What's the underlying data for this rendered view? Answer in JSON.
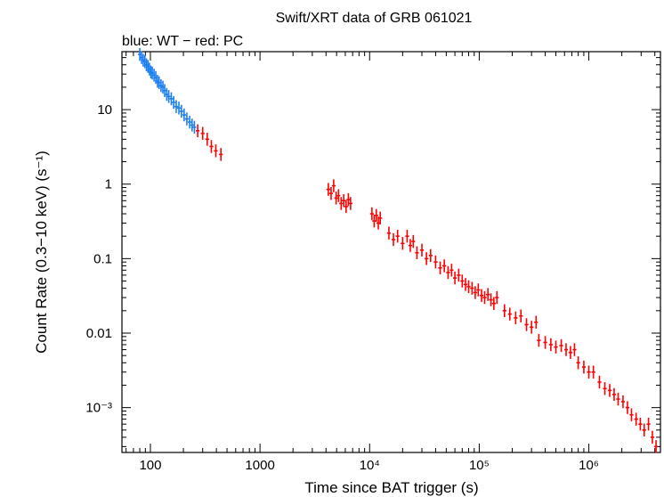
{
  "chart_data": {
    "type": "scatter",
    "title": "Swift/XRT data of GRB 061021",
    "subtitle": "blue: WT − red: PC",
    "xlabel": "Time since BAT trigger (s)",
    "ylabel": "Count Rate (0.3−10 keV) (s⁻¹)",
    "x_scale": "log",
    "y_scale": "log",
    "xlim": [
      55,
      4500000
    ],
    "ylim": [
      0.00025,
      60
    ],
    "x_ticks": [
      {
        "value": 100,
        "label": "100"
      },
      {
        "value": 1000,
        "label": "1000"
      },
      {
        "value": 10000,
        "label": "10⁴"
      },
      {
        "value": 100000,
        "label": "10⁵"
      },
      {
        "value": 1000000,
        "label": "10⁶"
      }
    ],
    "y_ticks": [
      {
        "value": 10,
        "label": "10"
      },
      {
        "value": 1,
        "label": "1"
      },
      {
        "value": 0.1,
        "label": "0.1"
      },
      {
        "value": 0.01,
        "label": "0.01"
      },
      {
        "value": 0.001,
        "label": "10⁻³"
      }
    ],
    "grid": false,
    "legend": "none",
    "series": [
      {
        "name": "WT",
        "color": "#1a7ff0",
        "points": [
          [
            80,
            55
          ],
          [
            83,
            50
          ],
          [
            86,
            46
          ],
          [
            89,
            44
          ],
          [
            92,
            40
          ],
          [
            95,
            38
          ],
          [
            98,
            35
          ],
          [
            101,
            32
          ],
          [
            104,
            31
          ],
          [
            108,
            29
          ],
          [
            112,
            27
          ],
          [
            116,
            24
          ],
          [
            120,
            23
          ],
          [
            125,
            21
          ],
          [
            130,
            20
          ],
          [
            135,
            18
          ],
          [
            141,
            16
          ],
          [
            147,
            15
          ],
          [
            155,
            14
          ],
          [
            163,
            12.5
          ],
          [
            172,
            11
          ],
          [
            182,
            10.5
          ],
          [
            192,
            9.5
          ],
          [
            203,
            8.5
          ],
          [
            215,
            7.5
          ],
          [
            228,
            6.8
          ],
          [
            240,
            6.2
          ],
          [
            252,
            5.8
          ]
        ]
      },
      {
        "name": "PC",
        "color": "#ff0000",
        "points": [
          [
            270,
            5.2
          ],
          [
            300,
            4.8
          ],
          [
            330,
            4.0
          ],
          [
            360,
            3.2
          ],
          [
            395,
            2.8
          ],
          [
            440,
            2.5
          ],
          [
            4200,
            0.85
          ],
          [
            4450,
            0.75
          ],
          [
            4700,
            0.95
          ],
          [
            4950,
            0.65
          ],
          [
            5200,
            0.7
          ],
          [
            5500,
            0.55
          ],
          [
            5800,
            0.6
          ],
          [
            6100,
            0.5
          ],
          [
            6400,
            0.62
          ],
          [
            6700,
            0.55
          ],
          [
            10500,
            0.4
          ],
          [
            11000,
            0.32
          ],
          [
            11500,
            0.38
          ],
          [
            12000,
            0.3
          ],
          [
            12500,
            0.35
          ],
          [
            15000,
            0.22
          ],
          [
            16500,
            0.18
          ],
          [
            18000,
            0.2
          ],
          [
            20000,
            0.16
          ],
          [
            22000,
            0.2
          ],
          [
            23500,
            0.15
          ],
          [
            25000,
            0.17
          ],
          [
            27000,
            0.12
          ],
          [
            30000,
            0.13
          ],
          [
            33000,
            0.1
          ],
          [
            36000,
            0.11
          ],
          [
            40000,
            0.09
          ],
          [
            44000,
            0.075
          ],
          [
            48000,
            0.08
          ],
          [
            52000,
            0.065
          ],
          [
            56000,
            0.07
          ],
          [
            60000,
            0.055
          ],
          [
            65000,
            0.06
          ],
          [
            70000,
            0.05
          ],
          [
            75000,
            0.045
          ],
          [
            80000,
            0.042
          ],
          [
            86000,
            0.04
          ],
          [
            92000,
            0.035
          ],
          [
            98000,
            0.038
          ],
          [
            105000,
            0.032
          ],
          [
            112000,
            0.03
          ],
          [
            120000,
            0.033
          ],
          [
            128000,
            0.028
          ],
          [
            136000,
            0.025
          ],
          [
            145000,
            0.03
          ],
          [
            170000,
            0.02
          ],
          [
            190000,
            0.018
          ],
          [
            215000,
            0.016
          ],
          [
            240000,
            0.017
          ],
          [
            270000,
            0.013
          ],
          [
            300000,
            0.012
          ],
          [
            330000,
            0.014
          ],
          [
            350000,
            0.008
          ],
          [
            400000,
            0.0075
          ],
          [
            450000,
            0.007
          ],
          [
            500000,
            0.0065
          ],
          [
            560000,
            0.0068
          ],
          [
            620000,
            0.006
          ],
          [
            680000,
            0.0055
          ],
          [
            740000,
            0.006
          ],
          [
            800000,
            0.004
          ],
          [
            900000,
            0.0035
          ],
          [
            1000000,
            0.003
          ],
          [
            1100000,
            0.003
          ],
          [
            1250000,
            0.0022
          ],
          [
            1400000,
            0.0018
          ],
          [
            1550000,
            0.0017
          ],
          [
            1700000,
            0.0015
          ],
          [
            1850000,
            0.0013
          ],
          [
            2050000,
            0.0012
          ],
          [
            2250000,
            0.001
          ],
          [
            2450000,
            0.0008
          ],
          [
            2700000,
            0.0007
          ],
          [
            2950000,
            0.0006
          ],
          [
            3200000,
            0.0005
          ],
          [
            3500000,
            0.0006
          ],
          [
            3800000,
            0.0004
          ],
          [
            4100000,
            0.0003
          ]
        ]
      }
    ]
  }
}
